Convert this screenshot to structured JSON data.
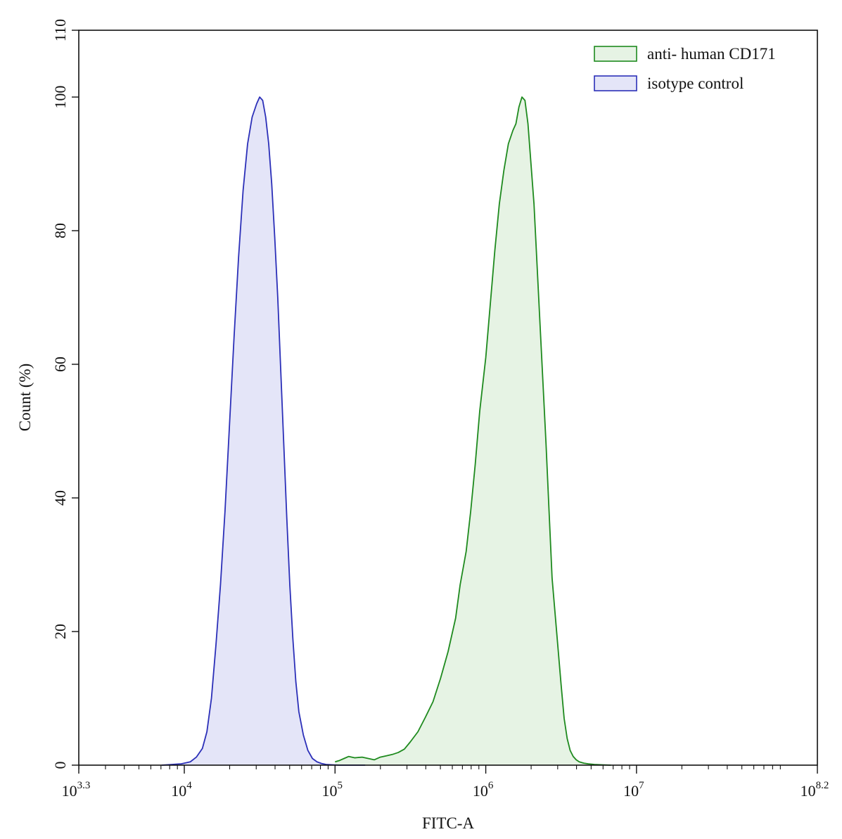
{
  "chart_data": {
    "type": "area",
    "title": "",
    "xlabel": "FITC-A",
    "ylabel": "Count (%)",
    "x_scale": "log10",
    "xlim": [
      3.3,
      8.2
    ],
    "ylim": [
      0,
      110
    ],
    "grid": false,
    "legend_position": "top-right",
    "x_tick_labels": [
      {
        "base": "10",
        "exp": "3.3",
        "at": 3.3
      },
      {
        "base": "10",
        "exp": "4",
        "at": 4
      },
      {
        "base": "10",
        "exp": "5",
        "at": 5
      },
      {
        "base": "10",
        "exp": "6",
        "at": 6
      },
      {
        "base": "10",
        "exp": "7",
        "at": 7
      },
      {
        "base": "10",
        "exp": "8.2",
        "at": 8.2
      }
    ],
    "y_ticks": [
      0,
      20,
      40,
      60,
      80,
      100,
      110
    ],
    "series": [
      {
        "name": "anti- human CD171",
        "stroke": "#1e8a1e",
        "fill": "#e6f3e4",
        "x": [
          5.0,
          5.03,
          5.06,
          5.09,
          5.13,
          5.18,
          5.22,
          5.26,
          5.3,
          5.34,
          5.38,
          5.42,
          5.46,
          5.5,
          5.55,
          5.6,
          5.65,
          5.7,
          5.75,
          5.8,
          5.83,
          5.87,
          5.9,
          5.93,
          5.96,
          6.0,
          6.03,
          6.06,
          6.09,
          6.12,
          6.15,
          6.18,
          6.2,
          6.22,
          6.24,
          6.26,
          6.28,
          6.3,
          6.32,
          6.34,
          6.36,
          6.38,
          6.4,
          6.42,
          6.44,
          6.47,
          6.5,
          6.52,
          6.54,
          6.56,
          6.58,
          6.6,
          6.62,
          6.65,
          6.68,
          6.72,
          6.77,
          6.83
        ],
        "values": [
          0.5,
          0.7,
          1.0,
          1.3,
          1.1,
          1.2,
          1.0,
          0.8,
          1.2,
          1.4,
          1.6,
          1.9,
          2.4,
          3.5,
          5.0,
          7.2,
          9.5,
          13.0,
          17.0,
          22.0,
          27.0,
          32.0,
          38.0,
          45.0,
          53.0,
          61.0,
          69.0,
          77.0,
          84.0,
          89.0,
          93.0,
          95.0,
          96.0,
          98.5,
          100.0,
          99.5,
          96.0,
          90.0,
          84.0,
          75.0,
          66.0,
          57.0,
          48.0,
          38.0,
          28.0,
          20.0,
          12.0,
          7.0,
          4.0,
          2.2,
          1.3,
          0.8,
          0.5,
          0.3,
          0.2,
          0.1,
          0.05,
          0.0
        ]
      },
      {
        "name": "isotype control",
        "stroke": "#2b2fb8",
        "fill": "#e4e5f8",
        "x": [
          3.85,
          3.92,
          3.98,
          4.04,
          4.08,
          4.12,
          4.15,
          4.18,
          4.21,
          4.24,
          4.27,
          4.3,
          4.33,
          4.36,
          4.39,
          4.42,
          4.45,
          4.48,
          4.5,
          4.52,
          4.54,
          4.56,
          4.58,
          4.6,
          4.62,
          4.64,
          4.66,
          4.68,
          4.7,
          4.72,
          4.74,
          4.76,
          4.79,
          4.82,
          4.85,
          4.88,
          4.91,
          4.94,
          4.98,
          5.03,
          5.1,
          5.2
        ],
        "values": [
          0.0,
          0.1,
          0.2,
          0.5,
          1.2,
          2.5,
          5.0,
          10.0,
          18.0,
          27.0,
          38.0,
          51.0,
          64.0,
          76.0,
          86.0,
          93.0,
          97.0,
          99.0,
          100.0,
          99.5,
          97.0,
          93.0,
          87.0,
          79.0,
          70.0,
          59.0,
          48.0,
          37.0,
          27.0,
          19.0,
          12.5,
          8.0,
          4.5,
          2.2,
          1.0,
          0.5,
          0.25,
          0.1,
          0.05,
          0.0,
          0.0,
          0.0
        ]
      }
    ]
  }
}
